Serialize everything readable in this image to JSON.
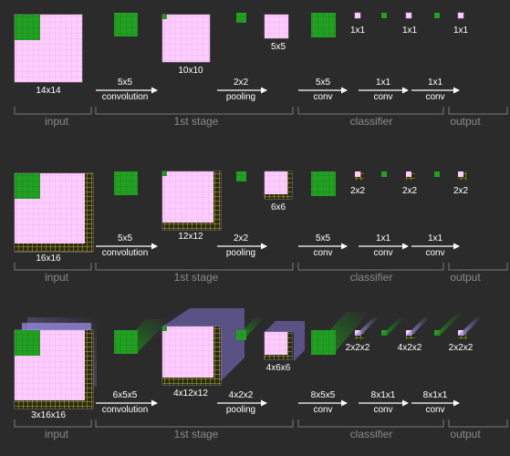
{
  "row1": {
    "input_size": "14x14",
    "pool_out": "5x5",
    "conv_out": "10x10",
    "cls_sizes": [
      "1x1",
      "1x1",
      "1x1"
    ],
    "ops": [
      {
        "top": "5x5",
        "bottom": "convolution"
      },
      {
        "top": "2x2",
        "bottom": "pooling"
      },
      {
        "top": "5x5",
        "bottom": "conv"
      },
      {
        "top": "1x1",
        "bottom": "conv"
      },
      {
        "top": "1x1",
        "bottom": "conv"
      }
    ],
    "stages": [
      "input",
      "1st stage",
      "classifier",
      "output"
    ]
  },
  "row2": {
    "input_size": "16x16",
    "pool_out": "6x6",
    "conv_out": "12x12",
    "cls_sizes": [
      "2x2",
      "2x2",
      "2x2"
    ],
    "ops": [
      {
        "top": "5x5",
        "bottom": "convolution"
      },
      {
        "top": "2x2",
        "bottom": "pooling"
      },
      {
        "top": "5x5",
        "bottom": "conv"
      },
      {
        "top": "1x1",
        "bottom": "conv"
      },
      {
        "top": "1x1",
        "bottom": "conv"
      }
    ],
    "stages": [
      "input",
      "1st stage",
      "classifier",
      "output"
    ]
  },
  "row3": {
    "input_size": "3x16x16",
    "pool_out": "4x6x6",
    "conv_out": "4x12x12",
    "cls_sizes": [
      "2x2x2",
      "4x2x2",
      "2x2x2"
    ],
    "ops": [
      {
        "top": "6x5x5",
        "bottom": "convolution"
      },
      {
        "top": "4x2x2",
        "bottom": "pooling"
      },
      {
        "top": "8x5x5",
        "bottom": "conv"
      },
      {
        "top": "8x1x1",
        "bottom": "conv"
      },
      {
        "top": "8x1x1",
        "bottom": "conv"
      }
    ],
    "stages": [
      "input",
      "1st stage",
      "classifier",
      "output"
    ]
  },
  "colors": {
    "background": "#2b2b2b",
    "feature_map": "#ffccff",
    "kernel": "#22a022",
    "padding": "#8c8c30",
    "volume": "#9a8ae6",
    "bracket": "#7a7a7a"
  }
}
